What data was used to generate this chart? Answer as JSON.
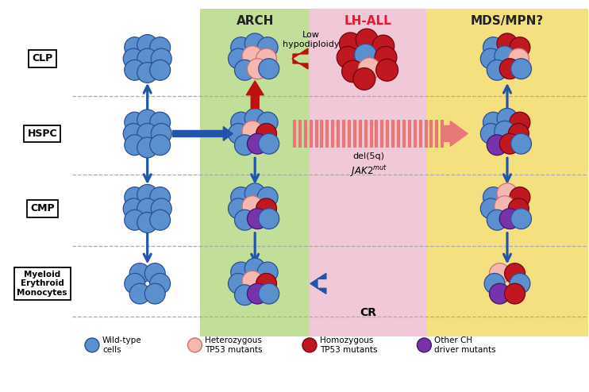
{
  "fig_width": 7.42,
  "fig_height": 4.94,
  "bg_color": "#ffffff",
  "arch_bg": "#c2df9a",
  "lhall_bg": "#f0c8d8",
  "mds_bg": "#f5e080",
  "arch_title": "ARCH",
  "lhall_title": "LH-ALL",
  "mds_title": "MDS/MPN?",
  "arch_title_color": "#222222",
  "lhall_title_color": "#e8192c",
  "mds_title_color": "#222222",
  "wt_blue": "#5b8fce",
  "wt_outline": "#2a4f99",
  "het_fill": "#f5b8b0",
  "het_outline": "#d07070",
  "hom_fill": "#c01820",
  "hom_outline": "#7a0010",
  "other_fill": "#7733aa",
  "other_outline": "#441177",
  "arrow_blue": "#2255aa",
  "arrow_red": "#bb1111",
  "arrow_pink": "#e87878",
  "dashed_color": "#aaaaaa"
}
